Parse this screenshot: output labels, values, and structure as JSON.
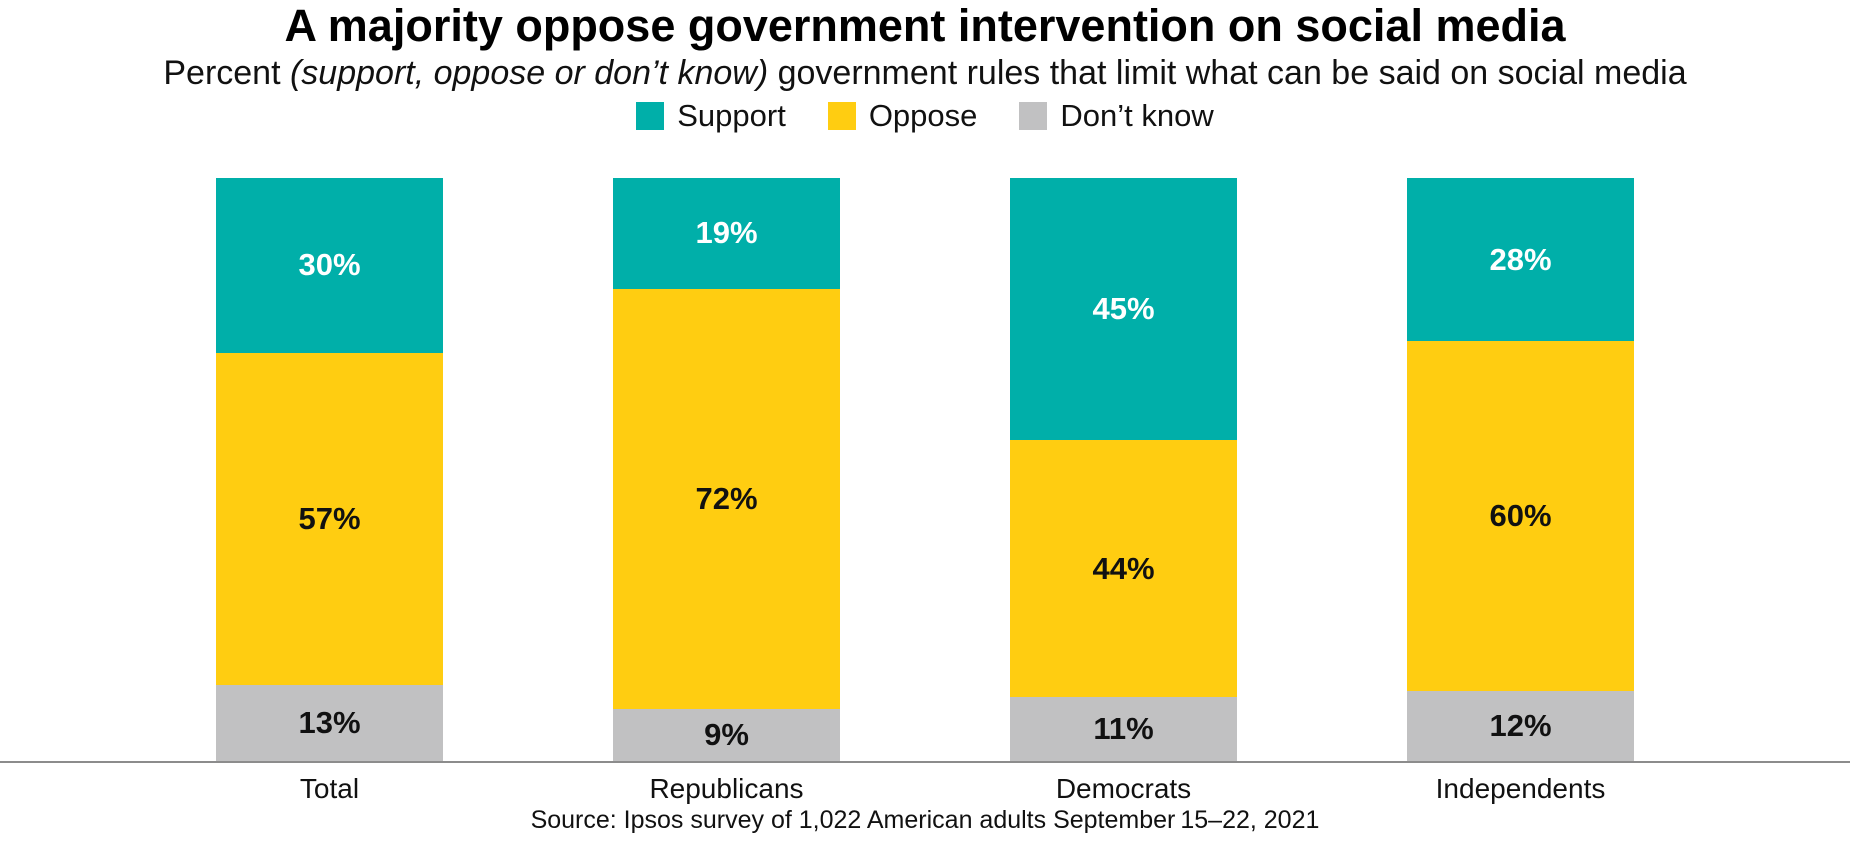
{
  "chart_data": {
    "type": "bar",
    "stacked": true,
    "orientation": "vertical",
    "title": "A majority oppose government intervention on social media",
    "subtitle": {
      "prefix": "Percent ",
      "italic": "(support, oppose or don’t know)",
      "suffix": " government rules that limit what can be said on social media"
    },
    "categories": [
      "Total",
      "Republicans",
      "Democrats",
      "Independents"
    ],
    "series": [
      {
        "name": "Support",
        "color": "#00AFA9",
        "label_color": "#ffffff",
        "values": [
          30,
          19,
          45,
          28
        ]
      },
      {
        "name": "Oppose",
        "color": "#FFCD11",
        "label_color": "#111111",
        "values": [
          57,
          72,
          44,
          60
        ]
      },
      {
        "name": "Don’t know",
        "color": "#C1C1C2",
        "label_color": "#111111",
        "values": [
          13,
          9,
          11,
          12
        ]
      }
    ],
    "value_suffix": "%",
    "ylim": [
      0,
      100
    ],
    "grid": false,
    "legend_position": "top",
    "axis_line_color": "#8c8c8c",
    "source": "Source: Ipsos survey of 1,022 American adults September 15–22, 2021"
  }
}
